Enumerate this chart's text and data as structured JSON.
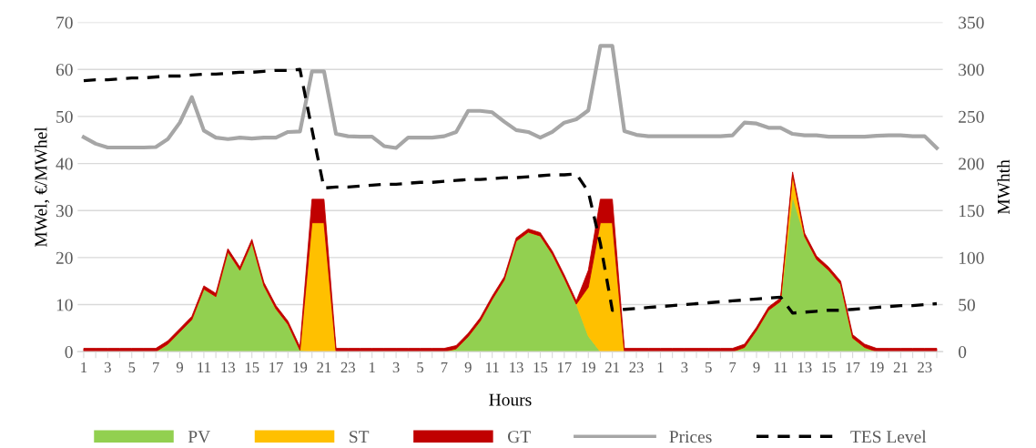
{
  "chart_data": {
    "type": "area",
    "stacked": true,
    "xlabel": "Hours",
    "ylabel": "MWel, €/MWhel",
    "y2label": "MWhth",
    "categories": [
      "1",
      null,
      "3",
      null,
      "5",
      null,
      "7",
      null,
      "9",
      null,
      "11",
      null,
      "13",
      null,
      "15",
      null,
      "17",
      null,
      "19",
      null,
      "21",
      null,
      "23",
      null,
      "1",
      null,
      "3",
      null,
      "5",
      null,
      "7",
      null,
      "9",
      null,
      "11",
      null,
      "13",
      null,
      "15",
      null,
      "17",
      null,
      "19",
      null,
      "21",
      null,
      "23",
      null,
      "1",
      null,
      "3",
      null,
      "5",
      null,
      "7",
      null,
      "9",
      null,
      "11",
      null,
      "13",
      null,
      "15",
      null,
      "17",
      null,
      "19",
      null,
      "21",
      null,
      "23",
      null
    ],
    "ylim": [
      0,
      70
    ],
    "yticks": [
      0,
      10,
      20,
      30,
      40,
      50,
      60,
      70
    ],
    "y2lim": [
      0,
      350
    ],
    "y2ticks": [
      0,
      50,
      100,
      150,
      200,
      250,
      300,
      350
    ],
    "grid": "y",
    "legend": "bottom",
    "series": [
      {
        "name": "PV",
        "color": "#92d050",
        "values": [
          0,
          0,
          0,
          0,
          0,
          0,
          0,
          1.6,
          4.2,
          6.8,
          13.3,
          11.7,
          21.2,
          17.3,
          23.2,
          14,
          9.1,
          5.8,
          0.3,
          0,
          0,
          0,
          0,
          0,
          0,
          0,
          0,
          0,
          0,
          0,
          0,
          0.6,
          3.2,
          6.5,
          11.1,
          15.2,
          23.5,
          25.4,
          24.6,
          20.7,
          15.6,
          10.1,
          3.3,
          0,
          0,
          0,
          0,
          0,
          0,
          0,
          0,
          0,
          0,
          0,
          0,
          0.9,
          4.5,
          8.8,
          10.7,
          33,
          24.5,
          19.6,
          17.3,
          14.3,
          2.9,
          0.9,
          0,
          0,
          0,
          0,
          0,
          0
        ]
      },
      {
        "name": "ST",
        "color": "#ffc000",
        "values": [
          0,
          0,
          0,
          0,
          0,
          0,
          0,
          0,
          0,
          0,
          0,
          0,
          0,
          0,
          0,
          0,
          0,
          0,
          0,
          27.4,
          27.4,
          0,
          0,
          0,
          0,
          0,
          0,
          0,
          0,
          0,
          0,
          0,
          0,
          0,
          0,
          0,
          0,
          0,
          0,
          0,
          0,
          0,
          10.4,
          27.4,
          27.4,
          0,
          0,
          0,
          0,
          0,
          0,
          0,
          0,
          0,
          0,
          0,
          0,
          0,
          0,
          4.5,
          0,
          0,
          0,
          0,
          0,
          0,
          0,
          0,
          0,
          0,
          0,
          0
        ]
      },
      {
        "name": "GT",
        "color": "#c00000",
        "values": [
          0.7,
          0.7,
          0.7,
          0.7,
          0.7,
          0.7,
          0.7,
          0.7,
          0.7,
          0.7,
          0.7,
          0.7,
          0.7,
          0.7,
          0.7,
          0.7,
          0.7,
          0.7,
          0.7,
          5,
          5,
          0.7,
          0.7,
          0.7,
          0.7,
          0.7,
          0.7,
          0.7,
          0.7,
          0.7,
          0.7,
          0.7,
          0.7,
          0.7,
          0.7,
          0.7,
          0.7,
          0.7,
          0.7,
          0.7,
          0.7,
          0.7,
          3.6,
          5,
          5,
          0.7,
          0.7,
          0.7,
          0.7,
          0.7,
          0.7,
          0.7,
          0.7,
          0.7,
          0.7,
          0.7,
          0.7,
          0.7,
          0.7,
          0.7,
          0.7,
          0.7,
          0.7,
          0.7,
          0.7,
          0.7,
          0.7,
          0.7,
          0.7,
          0.7,
          0.7,
          0.7
        ]
      },
      {
        "name": "Prices",
        "type": "line",
        "color": "#a6a6a6",
        "line_style": "solid",
        "values": [
          45.6,
          44.2,
          43.4,
          43.4,
          43.4,
          43.4,
          43.5,
          45.2,
          48.7,
          54.1,
          47,
          45.5,
          45.2,
          45.5,
          45.3,
          45.5,
          45.5,
          46.7,
          46.8,
          59.6,
          59.6,
          46.3,
          45.8,
          45.7,
          45.7,
          43.7,
          43.3,
          45.5,
          45.5,
          45.5,
          45.8,
          46.7,
          51.2,
          51.2,
          50.9,
          48.9,
          47.1,
          46.7,
          45.5,
          46.7,
          48.7,
          49.4,
          51.3,
          65,
          65,
          46.9,
          46.1,
          45.8,
          45.8,
          45.8,
          45.8,
          45.8,
          45.8,
          45.8,
          46,
          48.7,
          48.5,
          47.6,
          47.6,
          46.3,
          46,
          46,
          45.7,
          45.7,
          45.7,
          45.7,
          45.9,
          46,
          46,
          45.8,
          45.8,
          43.3
        ]
      },
      {
        "name": "TES Level",
        "type": "line",
        "axis": "y2",
        "color": "#000000",
        "line_style": "dashed",
        "values": [
          288,
          289,
          289,
          290,
          291,
          291,
          292,
          293,
          293,
          294,
          295,
          295,
          296,
          297,
          297,
          298,
          299,
          299,
          300,
          236,
          174,
          175,
          175,
          176,
          177,
          178,
          178,
          179,
          180,
          180,
          181,
          182,
          183,
          183,
          184,
          185,
          185,
          186,
          187,
          188,
          188,
          189,
          170,
          115,
          44,
          45,
          46,
          47,
          48,
          49,
          50,
          51,
          52,
          53,
          54,
          55,
          56,
          57,
          58,
          41,
          42,
          43,
          44,
          44,
          45,
          46,
          47,
          48,
          49,
          49,
          50,
          51
        ]
      }
    ]
  }
}
